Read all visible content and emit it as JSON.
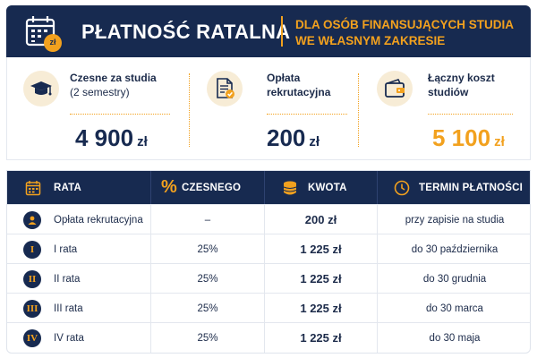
{
  "header": {
    "title": "PŁATNOŚĆ RATALNA",
    "subtitle_line1": "DLA OSÓB FINANSUJĄCYCH STUDIA",
    "subtitle_line2": "WE WŁASNYM ZAKRESIE",
    "icon_badge": "zł"
  },
  "summary": [
    {
      "icon": "graduation-cap-icon",
      "label_line1": "Czesne za studia",
      "label_line2": "(2 semestry)",
      "amount": "4 900",
      "currency": "zł"
    },
    {
      "icon": "document-check-icon",
      "label_line1": "Opłata",
      "label_line2": "rekrutacyjna",
      "amount": "200",
      "currency": "zł"
    },
    {
      "icon": "wallet-icon",
      "label_line1": "Łączny koszt",
      "label_line2": "studiów",
      "amount": "5 100",
      "currency": "zł"
    }
  ],
  "table": {
    "headers": {
      "rata": "RATA",
      "percent_symbol": "%",
      "percent": "CZESNEGO",
      "kwota": "KWOTA",
      "termin": "TERMIN PŁATNOŚCI"
    },
    "rows": [
      {
        "badge": "",
        "name": "Opłata rekrutacyjna",
        "percent": "–",
        "amount": "200 zł",
        "deadline": "przy zapisie na studia"
      },
      {
        "badge": "I",
        "name": "I rata",
        "percent": "25%",
        "amount": "1 225 zł",
        "deadline": "do 30 października"
      },
      {
        "badge": "II",
        "name": "II rata",
        "percent": "25%",
        "amount": "1 225 zł",
        "deadline": "do 30 grudnia"
      },
      {
        "badge": "III",
        "name": "III rata",
        "percent": "25%",
        "amount": "1 225 zł",
        "deadline": "do 30 marca"
      },
      {
        "badge": "IV",
        "name": "IV rata",
        "percent": "25%",
        "amount": "1 225 zł",
        "deadline": "do 30 maja"
      }
    ]
  },
  "colors": {
    "navy": "#172a50",
    "accent": "#f2a11e",
    "icon_bg": "#f7ecd6"
  }
}
